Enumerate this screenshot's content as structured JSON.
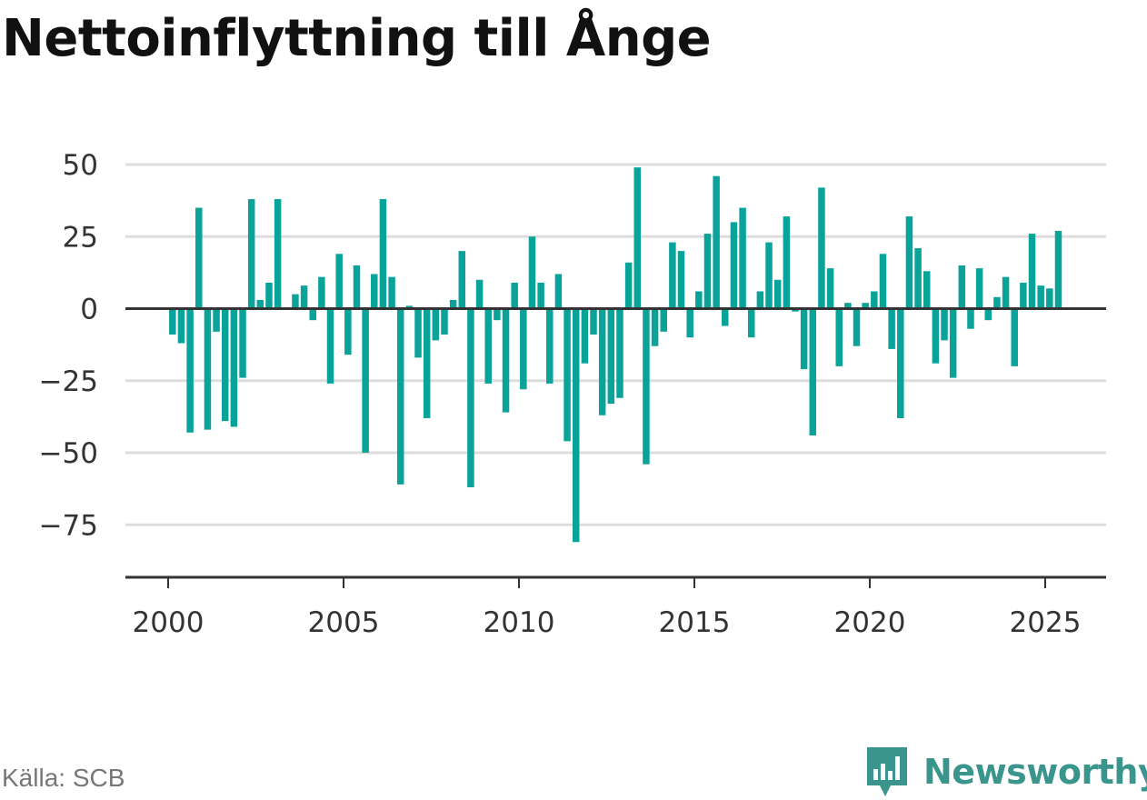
{
  "title": "Nettoinflyttning till Ånge",
  "source": "Källa: SCB",
  "brand": "Newsworthy",
  "colors": {
    "bar": "#0aa39a",
    "brand": "#3a958c",
    "grid": "#dddddd",
    "axis": "#333333"
  },
  "chart_data": {
    "type": "bar",
    "ylim": [
      -90,
      50
    ],
    "yticks": [
      50,
      25,
      0,
      -25,
      -50,
      -75
    ],
    "ytick_labels": [
      "50",
      "25",
      "0",
      "−25",
      "−50",
      "−75"
    ],
    "xticks": [
      2000,
      2005,
      2010,
      2015,
      2020,
      2025
    ],
    "xtick_labels": [
      "2000",
      "2005",
      "2010",
      "2015",
      "2020",
      "2025"
    ],
    "x_start": 2000.125,
    "x_step": 0.25,
    "values": [
      -9,
      -12,
      -43,
      35,
      -42,
      -8,
      -39,
      -41,
      -24,
      38,
      3,
      9,
      38,
      0,
      5,
      8,
      -4,
      11,
      -26,
      19,
      -16,
      15,
      -50,
      12,
      38,
      11,
      -61,
      1,
      -17,
      -38,
      -11,
      -9,
      3,
      20,
      -62,
      10,
      -26,
      -4,
      -36,
      9,
      -28,
      25,
      9,
      -26,
      12,
      -46,
      -81,
      -19,
      -9,
      -37,
      -33,
      -31,
      16,
      49,
      -54,
      -13,
      -8,
      23,
      20,
      -10,
      6,
      26,
      46,
      -6,
      30,
      35,
      -10,
      6,
      23,
      10,
      32,
      -1,
      -21,
      -44,
      42,
      14,
      -20,
      2,
      -13,
      2,
      6,
      19,
      -14,
      -38,
      32,
      21,
      13,
      -19,
      -11,
      -24,
      15,
      -7,
      14,
      -4,
      4,
      11,
      -20,
      9,
      26,
      8,
      7,
      27
    ]
  }
}
